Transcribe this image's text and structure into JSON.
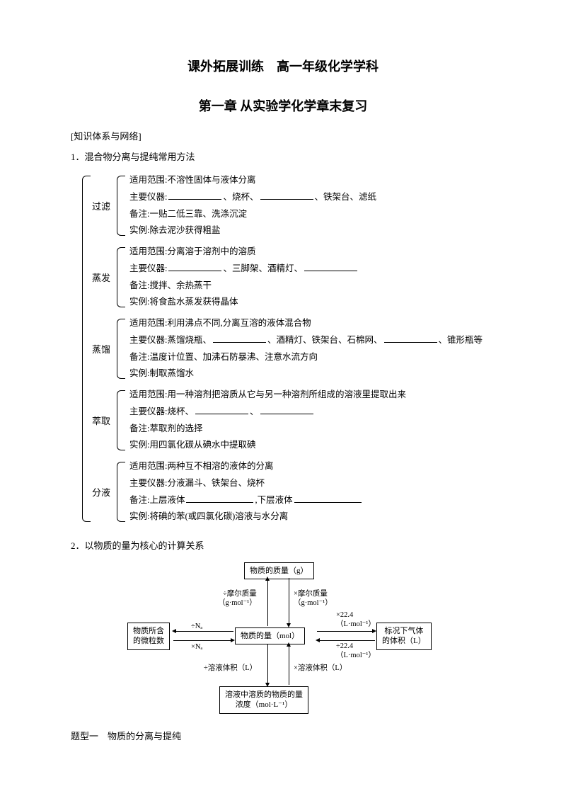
{
  "title_main": "课外拓展训练　高一年级化学学科",
  "title_sub": "第一章 从实验学化学章末复习",
  "section_label": "[知识体系与网络]",
  "heading1": "1．混合物分离与提纯常用方法",
  "methods": [
    {
      "name": "过滤",
      "lines": [
        {
          "pre": "适用范围:不溶性固体与液体分离"
        },
        {
          "pre": "主要仪器:",
          "blanks": [
            {
              "cls": "blank-md"
            }
          ],
          "mid1": "、烧杯、",
          "blanks2": [
            {
              "cls": "blank-md"
            }
          ],
          "mid2": "、铁架台、滤纸"
        },
        {
          "pre": "备注:一贴二低三靠、洗涤沉淀"
        },
        {
          "pre": "实例:除去泥沙获得粗盐"
        }
      ]
    },
    {
      "name": "蒸发",
      "lines": [
        {
          "pre": "适用范围:分离溶于溶剂中的溶质"
        },
        {
          "pre": "主要仪器:",
          "blanks": [
            {
              "cls": "blank-md"
            }
          ],
          "mid1": "、三脚架、酒精灯、",
          "blanks2": [
            {
              "cls": "blank-md"
            }
          ]
        },
        {
          "pre": "备注:搅拌、余热蒸干"
        },
        {
          "pre": "实例:将食盐水蒸发获得晶体"
        }
      ]
    },
    {
      "name": "蒸馏",
      "lines": [
        {
          "pre": "适用范围:利用沸点不同,分离互溶的液体混合物"
        },
        {
          "pre": "主要仪器:蒸馏烧瓶、",
          "blanks": [
            {
              "cls": "blank-md"
            }
          ],
          "mid1": "、酒精灯、铁架台、石棉网、",
          "blanks2": [
            {
              "cls": "blank-md"
            }
          ],
          "mid2": "、锥形瓶等"
        },
        {
          "pre": "备注:温度计位置、加沸石防暴沸、注意水流方向"
        },
        {
          "pre": "实例:制取蒸馏水"
        }
      ]
    },
    {
      "name": "萃取",
      "lines": [
        {
          "pre": "适用范围:用一种溶剂把溶质从它与另一种溶剂所组成的溶液里提取出来"
        },
        {
          "pre": "主要仪器:烧杯、",
          "blanks": [
            {
              "cls": "blank-md"
            }
          ],
          "mid1": "、",
          "blanks2": [
            {
              "cls": "blank-md"
            }
          ]
        },
        {
          "pre": "备注:萃取剂的选择"
        },
        {
          "pre": "实例:用四氯化碳从碘水中提取碘"
        }
      ]
    },
    {
      "name": "分液",
      "lines": [
        {
          "pre": "适用范围:两种互不相溶的液体的分离"
        },
        {
          "pre": "主要仪器:分液漏斗、铁架台、烧杯"
        },
        {
          "pre": "备注:上层液体",
          "blanks": [
            {
              "cls": "blank-lg"
            }
          ],
          "mid1": ",下层液体",
          "blanks2": [
            {
              "cls": "blank-lg"
            }
          ]
        },
        {
          "pre": "实例:将碘的苯(或四氯化碳)溶液与水分离"
        }
      ]
    }
  ],
  "heading2": "2．以物质的量为核心的计算关系",
  "diagram2": {
    "box_top": "物质的质量（g）",
    "box_left": "物质所含\n的微粒数",
    "box_center": "物质的量（mol）",
    "box_right": "标况下气体\n的体积（L）",
    "box_bottom": "溶液中溶质的物质的量\n浓度（mol·L⁻¹）",
    "lbl_top_left": "÷摩尔质量\n（g·mol⁻¹）",
    "lbl_top_right": "×摩尔质量\n（g·mol⁻¹）",
    "lbl_mid_left_top": "÷Nₐ",
    "lbl_mid_left_bot": "×Nₐ",
    "lbl_mid_right_top": "×22.4\n（L·mol⁻¹）",
    "lbl_mid_right_bot": "÷22.4\n（L·mol⁻¹）",
    "lbl_bot_left": "÷溶液体积（L）",
    "lbl_bot_right": "×溶液体积（L）"
  },
  "topic1": "题型一　物质的分离与提纯"
}
